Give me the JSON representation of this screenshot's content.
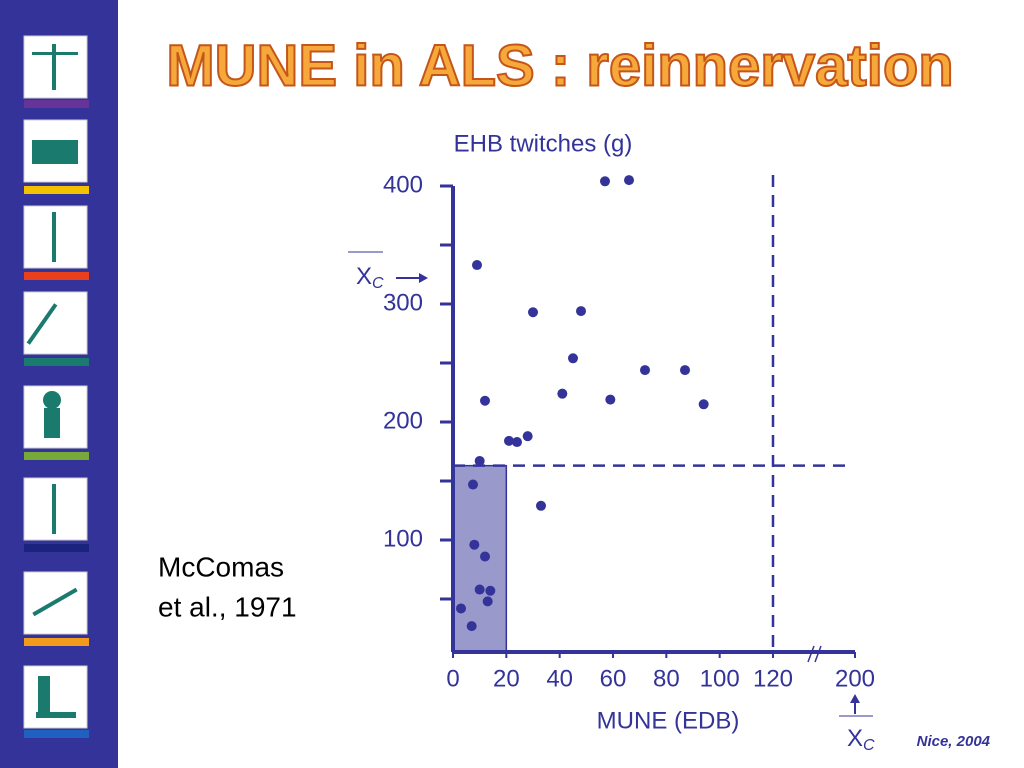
{
  "chart_data": {
    "type": "scatter",
    "title": "MUNE in ALS : reinnervation",
    "y_label": "EHB twitches (g)",
    "x_label": "MUNE (EDB)",
    "color": "#333399",
    "x": [
      57,
      66,
      9,
      30,
      48,
      45,
      72,
      87,
      59,
      94,
      41,
      12,
      21,
      24,
      28,
      10,
      7.5,
      33,
      8,
      12,
      10,
      14,
      13,
      3,
      7
    ],
    "values": [
      404,
      405,
      333,
      293,
      294,
      254,
      244,
      244,
      219,
      215,
      224,
      218,
      184,
      183,
      188,
      167,
      147,
      129,
      96,
      86,
      58,
      57,
      48,
      42,
      27
    ],
    "xlim": [
      0,
      200
    ],
    "xticks": [
      0,
      20,
      40,
      60,
      80,
      100,
      120,
      200
    ],
    "x_axis_break": [
      120,
      200
    ],
    "ylim": [
      0,
      400
    ],
    "yticks": [
      100,
      200,
      300,
      400
    ],
    "y_minor_ticks": [
      50,
      150,
      250,
      350
    ],
    "reference_lines": {
      "x": 120,
      "y": 163
    },
    "shaded_region": {
      "x": [
        0,
        20
      ],
      "y": [
        0,
        163
      ],
      "color": "#9999cc"
    },
    "xc_markers": {
      "x": 200,
      "y": 322,
      "label": "X",
      "subscript": "C"
    },
    "annotations": {
      "source": [
        "McComas",
        "et al., 1971"
      ],
      "footer": "Nice, 2004"
    }
  }
}
